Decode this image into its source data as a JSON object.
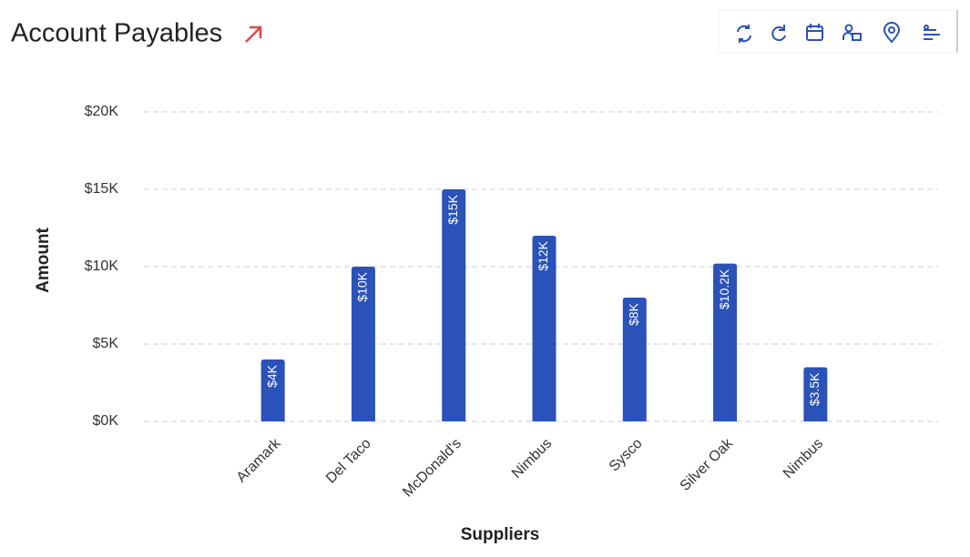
{
  "header": {
    "title": "Account Payables"
  },
  "chart_data": {
    "type": "bar",
    "categories": [
      "Aramark",
      "Del Taco",
      "McDonald's",
      "Nimbus",
      "Sysco",
      "Silver Oak",
      "Nimbus"
    ],
    "values": [
      4000,
      10000,
      15000,
      12000,
      8000,
      10200,
      3500
    ],
    "value_labels": [
      "$4K",
      "$10K",
      "$15K",
      "$12K",
      "$8K",
      "$10.2K",
      "$3.5K"
    ],
    "color": "#2a52b8",
    "ylim": [
      0,
      20000
    ],
    "yticks": [
      {
        "value": 0,
        "label": "$0K"
      },
      {
        "value": 5000,
        "label": "$5K"
      },
      {
        "value": 10000,
        "label": "$10K"
      },
      {
        "value": 15000,
        "label": "$15K"
      },
      {
        "value": 20000,
        "label": "$20K"
      }
    ],
    "y_label": "Amount",
    "x_label": "Suppliers",
    "grid": true
  }
}
